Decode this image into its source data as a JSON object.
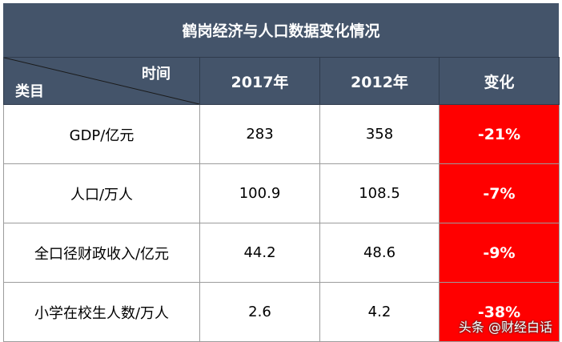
{
  "table": {
    "title": "鹤岗经济与人口数据变化情况",
    "corner_top": "时间",
    "corner_bottom": "类目",
    "headers": [
      "2017年",
      "2012年",
      "变化"
    ],
    "rows": [
      {
        "category": "GDP/亿元",
        "y2017": "283",
        "y2012": "358",
        "change": "-21%"
      },
      {
        "category": "人口/万人",
        "y2017": "100.9",
        "y2012": "108.5",
        "change": "-7%"
      },
      {
        "category": "全口径财政收入/亿元",
        "y2017": "44.2",
        "y2012": "48.6",
        "change": "-9%"
      },
      {
        "category": "小学在校生人数/万人",
        "y2017": "2.6",
        "y2012": "4.2",
        "change": "-38%"
      }
    ],
    "colors": {
      "header_bg": "#44546a",
      "change_bg": "#ff0000"
    }
  },
  "watermark": "头条 @财经白话"
}
